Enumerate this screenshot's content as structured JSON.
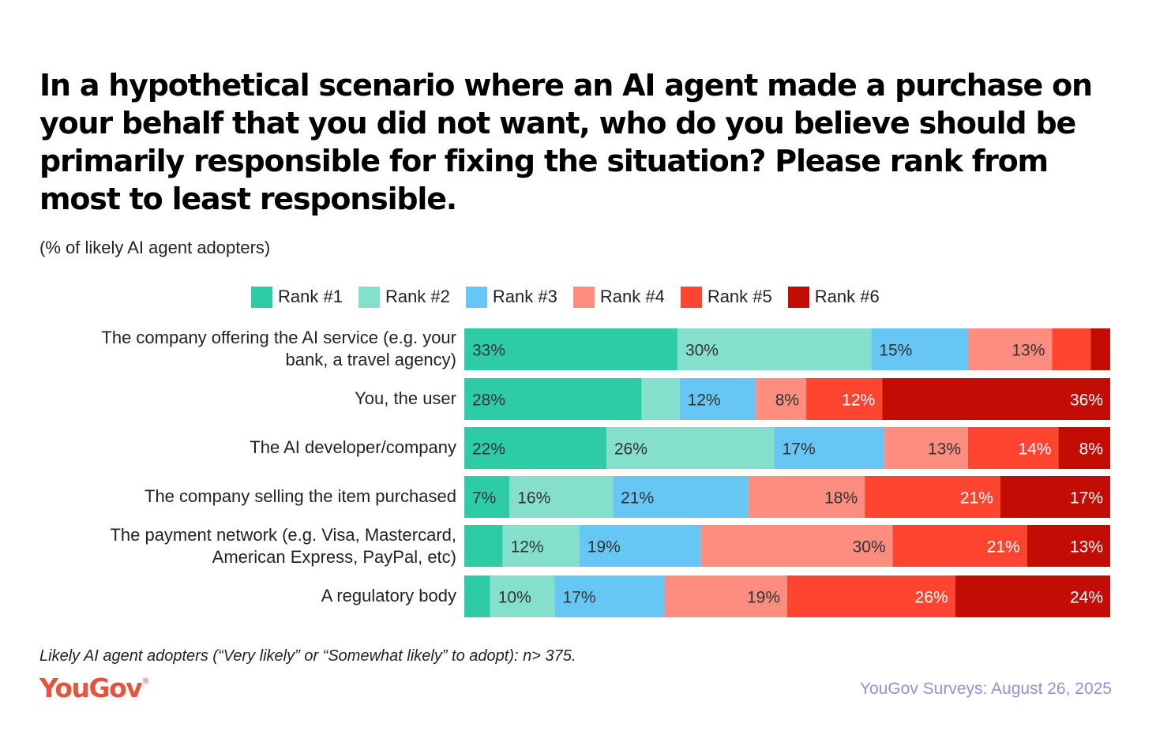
{
  "chart_data": {
    "type": "bar",
    "orientation": "horizontal",
    "stacked": true,
    "title": "In a hypothetical scenario where an AI agent made a purchase on your behalf that you did not want, who do you believe should be primarily responsible for fixing the situation? Please rank from most to least responsible.",
    "subtitle": "(% of likely AI agent adopters)",
    "categories": [
      [
        "The company offering the AI service (e.g. your",
        "bank, a travel agency)"
      ],
      [
        "You, the user"
      ],
      [
        "The AI developer/company"
      ],
      [
        "The company selling the item purchased"
      ],
      [
        "The payment network (e.g. Visa, Mastercard,",
        "American Express, PayPal, etc)"
      ],
      [
        "A regulatory body"
      ]
    ],
    "series": [
      {
        "name": "Rank #1",
        "color": "#2ecca6",
        "text_color": "#333333",
        "values": [
          33,
          28,
          22,
          7,
          6,
          4
        ]
      },
      {
        "name": "Rank #2",
        "color": "#84e0cc",
        "text_color": "#333333",
        "values": [
          30,
          6,
          26,
          16,
          12,
          10
        ]
      },
      {
        "name": "Rank #3",
        "color": "#66c6f4",
        "text_color": "#333333",
        "values": [
          15,
          12,
          17,
          21,
          19,
          17
        ]
      },
      {
        "name": "Rank #4",
        "color": "#fd8d7f",
        "text_color": "#333333",
        "values": [
          13,
          8,
          13,
          18,
          30,
          19
        ]
      },
      {
        "name": "Rank #5",
        "color": "#ff4530",
        "text_color": "#ffffff",
        "values": [
          6,
          12,
          14,
          21,
          21,
          26
        ]
      },
      {
        "name": "Rank #6",
        "color": "#c30c03",
        "text_color": "#ffffff",
        "values": [
          3,
          36,
          8,
          17,
          13,
          24
        ]
      }
    ],
    "data_labels": [
      [
        "33%",
        "30%",
        "15%",
        "13%",
        "",
        ""
      ],
      [
        "28%",
        "",
        "12%",
        "8%",
        "12%",
        "36%"
      ],
      [
        "22%",
        "26%",
        "17%",
        "13%",
        "14%",
        "8%"
      ],
      [
        "7%",
        "16%",
        "21%",
        "18%",
        "21%",
        "17%"
      ],
      [
        "",
        "12%",
        "19%",
        "30%",
        "21%",
        "13%"
      ],
      [
        "",
        "10%",
        "17%",
        "19%",
        "26%",
        "24%"
      ]
    ],
    "label_align": [
      [
        "start",
        "start",
        "start",
        "end",
        "start",
        "start"
      ],
      [
        "start",
        "start",
        "start",
        "end",
        "end",
        "end"
      ],
      [
        "start",
        "start",
        "start",
        "end",
        "end",
        "end"
      ],
      [
        "start",
        "start",
        "start",
        "end",
        "end",
        "end"
      ],
      [
        "start",
        "start",
        "start",
        "end",
        "end",
        "end"
      ],
      [
        "start",
        "start",
        "start",
        "end",
        "end",
        "end"
      ]
    ],
    "legend_position": "top",
    "xlabel": "",
    "ylabel": ""
  },
  "footnote": "Likely AI agent adopters (“Very likely” or “Somewhat likely” to adopt): n> 375.",
  "logo": {
    "text": "YouGov",
    "mark": "®"
  },
  "source": "YouGov Surveys: August 26, 2025"
}
